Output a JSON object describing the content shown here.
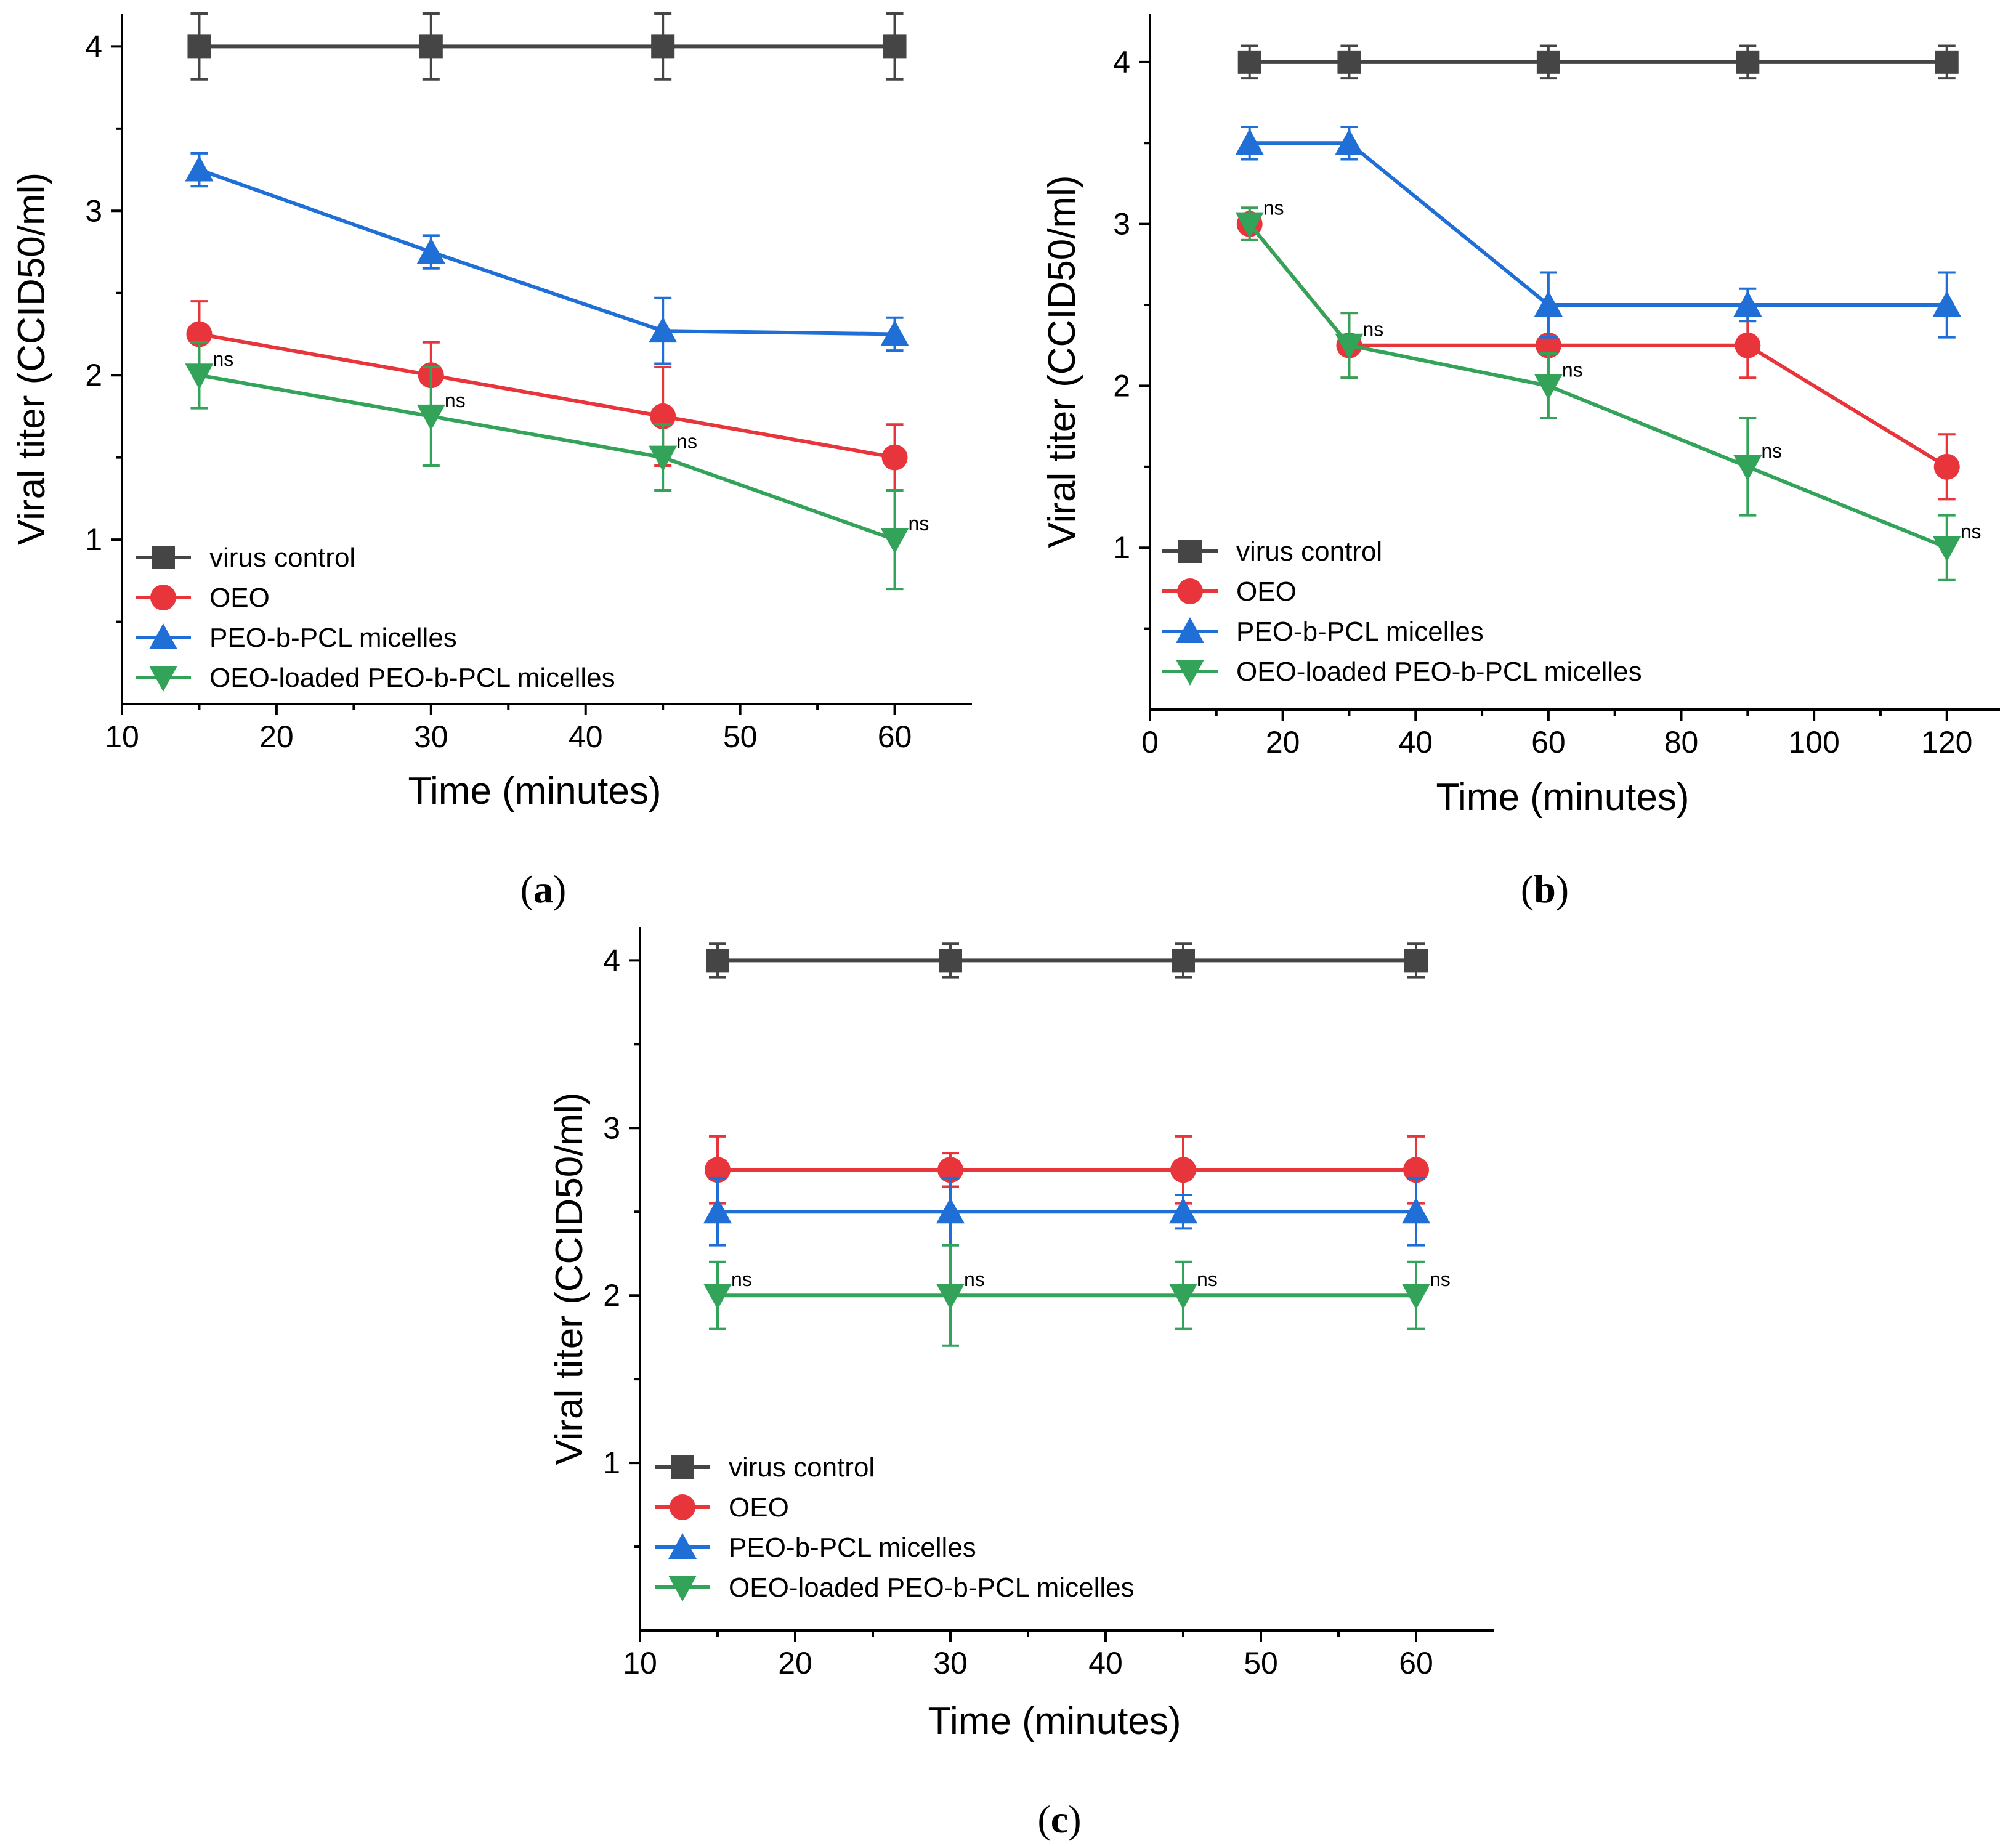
{
  "chart_data": [
    {
      "type": "line",
      "panel": "a",
      "xlabel": "Time (minutes)",
      "ylabel": "Viral titer (CCID50/ml)",
      "xlim": [
        10,
        65
      ],
      "ylim": [
        0,
        4.2
      ],
      "xticks": [
        10,
        20,
        30,
        40,
        50,
        60
      ],
      "yticks": [
        1,
        2,
        3,
        4
      ],
      "legend_position": "bottom-left",
      "series": [
        {
          "name": "virus control",
          "color": "#454545",
          "marker": "square",
          "x": [
            15,
            30,
            45,
            60
          ],
          "y": [
            4.0,
            4.0,
            4.0,
            4.0
          ],
          "err": [
            0.2,
            0.2,
            0.2,
            0.2
          ]
        },
        {
          "name": "OEO",
          "color": "#e8353b",
          "marker": "circle",
          "x": [
            15,
            30,
            45,
            60
          ],
          "y": [
            2.25,
            2.0,
            1.75,
            1.5
          ],
          "err": [
            0.2,
            0.2,
            0.3,
            0.2
          ]
        },
        {
          "name": "PEO-b-PCL micelles",
          "color": "#1f6fd6",
          "marker": "triangle-up",
          "x": [
            15,
            30,
            45,
            60
          ],
          "y": [
            3.25,
            2.75,
            2.27,
            2.25
          ],
          "err": [
            0.1,
            0.1,
            0.2,
            0.1
          ]
        },
        {
          "name": "OEO-loaded PEO-b-PCL micelles",
          "color": "#33a35a",
          "marker": "triangle-down",
          "x": [
            15,
            30,
            45,
            60
          ],
          "y": [
            2.0,
            1.75,
            1.5,
            1.0
          ],
          "err": [
            0.2,
            0.3,
            0.2,
            0.3
          ]
        }
      ],
      "annotations": [
        {
          "text": "ns",
          "x": 15,
          "y": 2.0
        },
        {
          "text": "ns",
          "x": 30,
          "y": 1.75
        },
        {
          "text": "ns",
          "x": 45,
          "y": 1.5
        },
        {
          "text": "ns",
          "x": 60,
          "y": 1.0
        }
      ]
    },
    {
      "type": "line",
      "panel": "b",
      "xlabel": "Time (minutes)",
      "ylabel": "Viral titer (CCID50/ml)",
      "xlim": [
        0,
        128
      ],
      "ylim": [
        0,
        4.3
      ],
      "xticks": [
        0,
        20,
        40,
        60,
        80,
        100,
        120
      ],
      "yticks": [
        1,
        2,
        3,
        4
      ],
      "legend_position": "bottom-left",
      "series": [
        {
          "name": "virus control",
          "color": "#454545",
          "marker": "square",
          "x": [
            15,
            30,
            60,
            90,
            120
          ],
          "y": [
            4.0,
            4.0,
            4.0,
            4.0,
            4.0
          ],
          "err": [
            0.1,
            0.1,
            0.1,
            0.1,
            0.1
          ]
        },
        {
          "name": "OEO",
          "color": "#e8353b",
          "marker": "circle",
          "x": [
            15,
            30,
            60,
            90,
            120
          ],
          "y": [
            3.0,
            2.25,
            2.25,
            2.25,
            1.5
          ],
          "err": [
            0.1,
            0.2,
            0.2,
            0.2,
            0.2
          ]
        },
        {
          "name": "PEO-b-PCL micelles",
          "color": "#1f6fd6",
          "marker": "triangle-up",
          "x": [
            15,
            30,
            60,
            90,
            120
          ],
          "y": [
            3.5,
            3.5,
            2.5,
            2.5,
            2.5
          ],
          "err": [
            0.1,
            0.1,
            0.2,
            0.1,
            0.2
          ]
        },
        {
          "name": "OEO-loaded PEO-b-PCL micelles",
          "color": "#33a35a",
          "marker": "triangle-down",
          "x": [
            15,
            30,
            60,
            90,
            120
          ],
          "y": [
            3.0,
            2.25,
            2.0,
            1.5,
            1.0
          ],
          "err": [
            0.1,
            0.2,
            0.2,
            0.3,
            0.2
          ]
        }
      ],
      "annotations": [
        {
          "text": "ns",
          "x": 15,
          "y": 3.0
        },
        {
          "text": "ns",
          "x": 30,
          "y": 2.25
        },
        {
          "text": "ns",
          "x": 60,
          "y": 2.0
        },
        {
          "text": "ns",
          "x": 90,
          "y": 1.5
        },
        {
          "text": "ns",
          "x": 120,
          "y": 1.0
        }
      ]
    },
    {
      "type": "line",
      "panel": "c",
      "xlabel": "Time (minutes)",
      "ylabel": "Viral titer (CCID50/ml)",
      "xlim": [
        10,
        65
      ],
      "ylim": [
        0,
        4.2
      ],
      "xticks": [
        10,
        20,
        30,
        40,
        50,
        60
      ],
      "yticks": [
        1,
        2,
        3,
        4
      ],
      "legend_position": "bottom-left",
      "series": [
        {
          "name": "virus control",
          "color": "#454545",
          "marker": "square",
          "x": [
            15,
            30,
            45,
            60
          ],
          "y": [
            4.0,
            4.0,
            4.0,
            4.0
          ],
          "err": [
            0.1,
            0.1,
            0.1,
            0.1
          ]
        },
        {
          "name": "OEO",
          "color": "#e8353b",
          "marker": "circle",
          "x": [
            15,
            30,
            45,
            60
          ],
          "y": [
            2.75,
            2.75,
            2.75,
            2.75
          ],
          "err": [
            0.2,
            0.1,
            0.2,
            0.2
          ]
        },
        {
          "name": "PEO-b-PCL micelles",
          "color": "#1f6fd6",
          "marker": "triangle-up",
          "x": [
            15,
            30,
            45,
            60
          ],
          "y": [
            2.5,
            2.5,
            2.5,
            2.5
          ],
          "err": [
            0.2,
            0.2,
            0.1,
            0.2
          ]
        },
        {
          "name": "OEO-loaded PEO-b-PCL micelles",
          "color": "#33a35a",
          "marker": "triangle-down",
          "x": [
            15,
            30,
            45,
            60
          ],
          "y": [
            2.0,
            2.0,
            2.0,
            2.0
          ],
          "err": [
            0.2,
            0.3,
            0.2,
            0.2
          ]
        }
      ],
      "annotations": [
        {
          "text": "ns",
          "x": 15,
          "y": 2.0
        },
        {
          "text": "ns",
          "x": 30,
          "y": 2.0
        },
        {
          "text": "ns",
          "x": 45,
          "y": 2.0
        },
        {
          "text": "ns",
          "x": 60,
          "y": 2.0
        }
      ]
    }
  ],
  "captions": [
    "(a)",
    "(b)",
    "(c)"
  ]
}
